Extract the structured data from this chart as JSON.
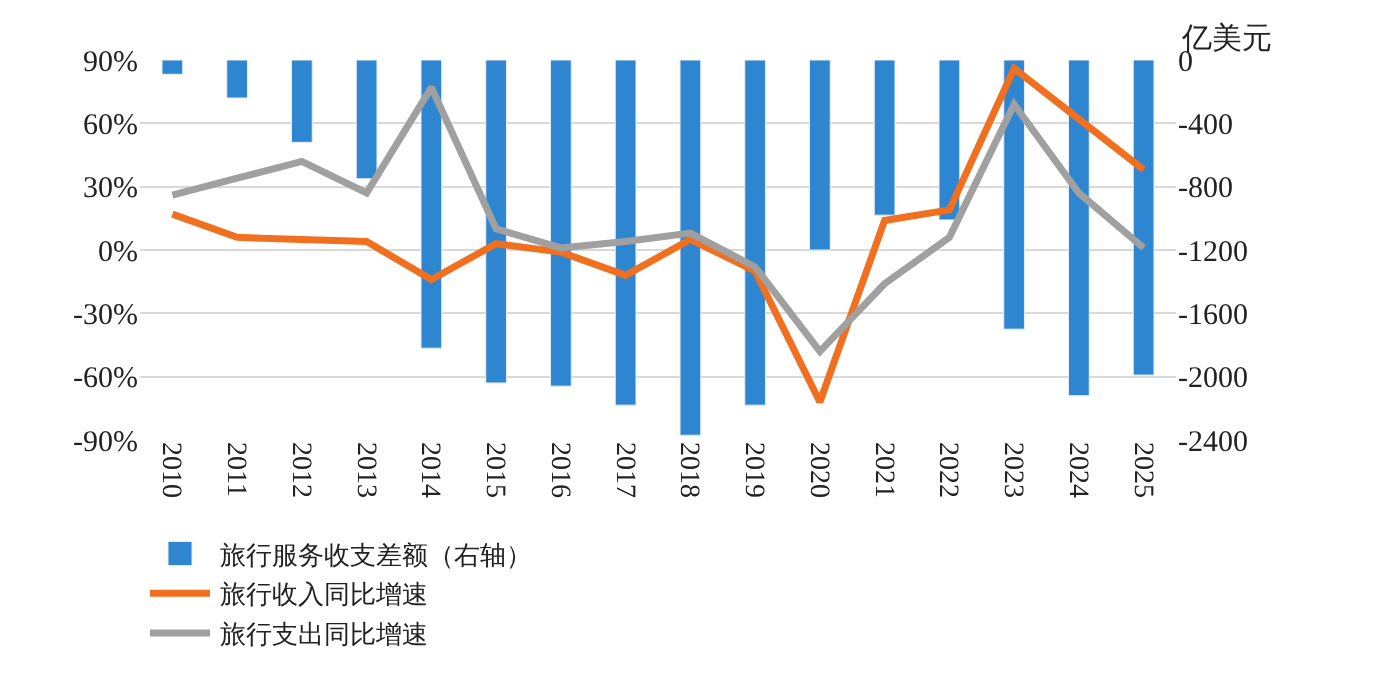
{
  "chart_data": {
    "type": "bar",
    "categories": [
      "2010",
      "2011",
      "2012",
      "2013",
      "2014",
      "2015",
      "2016",
      "2017",
      "2018",
      "2019",
      "2020",
      "2021",
      "2022",
      "2023",
      "2024",
      "2025"
    ],
    "series": [
      {
        "name": "旅行服务收支差额（右轴）",
        "axis": "y2",
        "color": "#2e86d1",
        "values": [
          -90,
          -240,
          -520,
          -750,
          -1820,
          -2040,
          -2060,
          -2180,
          -2370,
          -2180,
          -1200,
          -980,
          -1010,
          -1700,
          -2120,
          -1990
        ]
      },
      {
        "name": "旅行收入同比增速",
        "type": "line",
        "color": "#f07020",
        "values": [
          17,
          6,
          5,
          4,
          -14,
          3,
          -1,
          -12,
          5,
          -10,
          -72,
          14,
          19,
          86,
          62,
          38
        ]
      },
      {
        "name": "旅行支出同比增速",
        "type": "line",
        "color": "#a0a0a0",
        "values": [
          26,
          34,
          42,
          27,
          77,
          10,
          1,
          4,
          8,
          -8,
          -48,
          -16,
          6,
          69,
          27,
          1
        ]
      }
    ],
    "ylim": [
      -90,
      90
    ],
    "yticks": [
      {
        "value": -90,
        "label": "-90%"
      },
      {
        "value": -60,
        "label": "-60%"
      },
      {
        "value": -30,
        "label": "-30%"
      },
      {
        "value": 0,
        "label": "0%"
      },
      {
        "value": 30,
        "label": "30%"
      },
      {
        "value": 60,
        "label": "60%"
      },
      {
        "value": 90,
        "label": "90%"
      }
    ],
    "y2lim": [
      -2400,
      0
    ],
    "y2ticks": [
      -2400,
      -2000,
      -1600,
      -1200,
      -800,
      -400,
      0
    ],
    "y2label": "亿美元",
    "grid": "y",
    "legend": "bottom",
    "marker": "none",
    "line_style": "solid"
  }
}
